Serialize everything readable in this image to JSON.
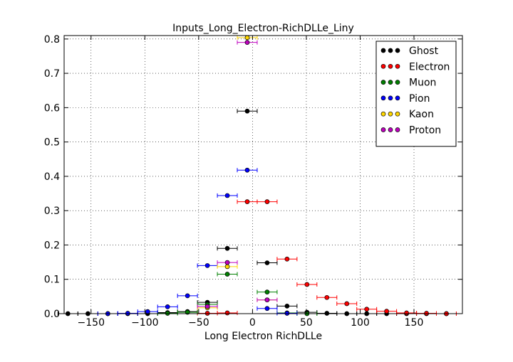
{
  "chart_data": {
    "type": "scatter",
    "title": "Inputs_Long_Electron-RichDLLe_Liny",
    "xlabel": "Long Electron RichDLLe",
    "ylabel": "",
    "xlim": [
      -175,
      195
    ],
    "ylim": [
      0,
      0.81
    ],
    "xticks": [
      -150,
      -100,
      -50,
      0,
      50,
      100,
      150
    ],
    "xtick_labels": [
      "−150",
      "−100",
      "−50",
      "0",
      "50",
      "100",
      "150"
    ],
    "yticks": [
      0.0,
      0.1,
      0.2,
      0.3,
      0.4,
      0.5,
      0.6,
      0.7,
      0.8
    ],
    "ytick_labels": [
      "0.0",
      "0.1",
      "0.2",
      "0.3",
      "0.4",
      "0.5",
      "0.6",
      "0.7",
      "0.8"
    ],
    "grid": true,
    "legend_position": "top-right",
    "x_error_halfwidth": 9.25,
    "series": [
      {
        "name": "Ghost",
        "color": "#000000",
        "points": [
          [
            -171.5,
            0.0
          ],
          [
            -152.9,
            0.0
          ],
          [
            -134.4,
            0.0
          ],
          [
            -115.9,
            0.0
          ],
          [
            -97.4,
            0.0
          ],
          [
            -78.9,
            0.003
          ],
          [
            -60.4,
            0.006
          ],
          [
            -41.9,
            0.033
          ],
          [
            -23.4,
            0.19
          ],
          [
            -4.9,
            0.59
          ],
          [
            13.6,
            0.148
          ],
          [
            32.1,
            0.022
          ],
          [
            50.6,
            0.004
          ],
          [
            69.1,
            0.001
          ],
          [
            87.6,
            0.0
          ],
          [
            106.1,
            0.0
          ],
          [
            124.6,
            0.0
          ],
          [
            143.1,
            0.0
          ],
          [
            161.6,
            0.0
          ],
          [
            180.1,
            0.0
          ]
        ]
      },
      {
        "name": "Electron",
        "color": "#ff0000",
        "points": [
          [
            -41.9,
            0.001
          ],
          [
            -23.4,
            0.002
          ],
          [
            -4.9,
            0.326
          ],
          [
            13.6,
            0.326
          ],
          [
            32.1,
            0.159
          ],
          [
            50.6,
            0.085
          ],
          [
            69.1,
            0.047
          ],
          [
            87.6,
            0.029
          ],
          [
            106.1,
            0.013
          ],
          [
            124.6,
            0.007
          ],
          [
            143.1,
            0.002
          ],
          [
            161.6,
            0.001
          ],
          [
            180.1,
            0.0
          ]
        ]
      },
      {
        "name": "Muon",
        "color": "#008000",
        "points": [
          [
            -78.9,
            0.001
          ],
          [
            -60.4,
            0.004
          ],
          [
            -41.9,
            0.027
          ],
          [
            -23.4,
            0.115
          ],
          [
            13.6,
            0.063
          ],
          [
            32.1,
            0.002
          ],
          [
            50.6,
            0.0
          ]
        ]
      },
      {
        "name": "Pion",
        "color": "#0000ff",
        "points": [
          [
            -134.4,
            0.0
          ],
          [
            -115.9,
            0.001
          ],
          [
            -97.4,
            0.006
          ],
          [
            -78.9,
            0.02
          ],
          [
            -60.4,
            0.052
          ],
          [
            -41.9,
            0.14
          ],
          [
            -23.4,
            0.344
          ],
          [
            -4.9,
            0.418
          ],
          [
            13.6,
            0.015
          ],
          [
            32.1,
            0.001
          ]
        ]
      },
      {
        "name": "Kaon",
        "color": "#ffd700",
        "points": [
          [
            -41.9,
            0.017
          ],
          [
            -23.4,
            0.137
          ],
          [
            -4.9,
            0.804
          ],
          [
            13.6,
            0.04
          ]
        ]
      },
      {
        "name": "Proton",
        "color": "#bf00bf",
        "points": [
          [
            -41.9,
            0.021
          ],
          [
            -23.4,
            0.149
          ],
          [
            -4.9,
            0.79
          ],
          [
            13.6,
            0.04
          ]
        ]
      }
    ]
  }
}
